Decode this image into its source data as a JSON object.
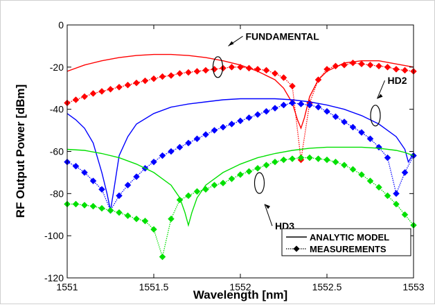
{
  "chart_data": {
    "type": "line",
    "title": "",
    "xlabel": "Wavelength [nm]",
    "ylabel": "RF Output Power [dBm]",
    "xlim": [
      1551,
      1553
    ],
    "ylim": [
      -120,
      0
    ],
    "x_ticks": [
      "1551",
      "1551.5",
      "1552",
      "1552.5",
      "1553"
    ],
    "y_ticks": [
      "0",
      "-20",
      "-40",
      "-60",
      "-80",
      "-100",
      "-120"
    ],
    "grid": false,
    "legend_position": "bottom-right",
    "legend": [
      {
        "label": "ANALYTIC MODEL",
        "style": "solid-line"
      },
      {
        "label": "MEASUREMENTS",
        "style": "dotted-line-diamond"
      }
    ],
    "annotations": [
      "FUNDAMENTAL",
      "HD2",
      "HD3"
    ],
    "colors": {
      "fundamental": "#ff0000",
      "hd2": "#0000ff",
      "hd3": "#00e000"
    },
    "series": [
      {
        "group": "fundamental",
        "kind": "model",
        "color": "#ff0000",
        "x": [
          1551,
          1551.1,
          1551.2,
          1551.3,
          1551.4,
          1551.5,
          1551.6,
          1551.7,
          1551.8,
          1551.9,
          1552,
          1552.1,
          1552.2,
          1552.25,
          1552.3,
          1552.33,
          1552.35,
          1552.37,
          1552.4,
          1552.45,
          1552.5,
          1552.6,
          1552.7,
          1552.8,
          1552.9,
          1553
        ],
        "y": [
          -22,
          -19,
          -17,
          -15.5,
          -14.5,
          -14,
          -14,
          -14.5,
          -15.5,
          -17,
          -19,
          -22,
          -26,
          -30,
          -37,
          -45,
          -49,
          -44,
          -34,
          -26,
          -22,
          -18,
          -17,
          -17,
          -18.5,
          -20
        ]
      },
      {
        "group": "fundamental",
        "kind": "measurement",
        "color": "#ff0000",
        "x": [
          1551,
          1551.05,
          1551.1,
          1551.15,
          1551.2,
          1551.25,
          1551.3,
          1551.35,
          1551.4,
          1551.45,
          1551.5,
          1551.55,
          1551.6,
          1551.65,
          1551.7,
          1551.75,
          1551.8,
          1551.85,
          1551.9,
          1551.95,
          1552,
          1552.05,
          1552.1,
          1552.15,
          1552.2,
          1552.25,
          1552.3,
          1552.35,
          1552.4,
          1552.45,
          1552.5,
          1552.55,
          1552.6,
          1552.65,
          1552.7,
          1552.75,
          1552.8,
          1552.85,
          1552.9,
          1552.95,
          1553
        ],
        "y": [
          -37,
          -35.5,
          -34,
          -32.5,
          -31.5,
          -30.5,
          -29.5,
          -28.5,
          -27.5,
          -26.5,
          -25.5,
          -24.5,
          -24,
          -23,
          -22.5,
          -22,
          -21.5,
          -21,
          -20.5,
          -20,
          -20,
          -20.5,
          -21,
          -21.5,
          -23,
          -25,
          -29,
          -64,
          -37,
          -26,
          -21,
          -19.5,
          -19,
          -18,
          -18.5,
          -19,
          -19.5,
          -20,
          -21,
          -21.5,
          -22
        ]
      },
      {
        "group": "hd2",
        "kind": "model",
        "color": "#0000ff",
        "x": [
          1551,
          1551.05,
          1551.1,
          1551.15,
          1551.2,
          1551.23,
          1551.25,
          1551.27,
          1551.3,
          1551.35,
          1551.4,
          1551.5,
          1551.6,
          1551.7,
          1551.8,
          1551.9,
          1552,
          1552.1,
          1552.2,
          1552.3,
          1552.4,
          1552.5,
          1552.6,
          1552.7,
          1552.8,
          1552.9,
          1552.95,
          1552.97,
          1553
        ],
        "y": [
          -42,
          -45,
          -49,
          -56,
          -70,
          -80,
          -88,
          -78,
          -62,
          -53,
          -47,
          -42,
          -39,
          -37.5,
          -36.5,
          -35.5,
          -35,
          -35,
          -35,
          -35.5,
          -36.5,
          -38,
          -40,
          -43,
          -47,
          -53,
          -59,
          -65,
          -61
        ]
      },
      {
        "group": "hd2",
        "kind": "measurement",
        "color": "#0000ff",
        "x": [
          1551,
          1551.05,
          1551.1,
          1551.15,
          1551.2,
          1551.25,
          1551.3,
          1551.35,
          1551.4,
          1551.45,
          1551.5,
          1551.55,
          1551.6,
          1551.65,
          1551.7,
          1551.75,
          1551.8,
          1551.85,
          1551.9,
          1551.95,
          1552,
          1552.05,
          1552.1,
          1552.15,
          1552.2,
          1552.25,
          1552.3,
          1552.35,
          1552.4,
          1552.45,
          1552.5,
          1552.55,
          1552.6,
          1552.65,
          1552.7,
          1552.75,
          1552.8,
          1552.85,
          1552.9,
          1552.95,
          1553
        ],
        "y": [
          -65,
          -67,
          -70,
          -74,
          -78,
          -88,
          -81,
          -76,
          -72,
          -68,
          -65,
          -62,
          -60,
          -58,
          -56,
          -54,
          -52,
          -50,
          -48.5,
          -47,
          -45.5,
          -44,
          -42.5,
          -41,
          -39.5,
          -38,
          -37,
          -37.5,
          -38,
          -39,
          -41,
          -43.5,
          -46,
          -48.5,
          -51,
          -54,
          -58,
          -63,
          -80,
          -70,
          -62
        ]
      },
      {
        "group": "hd3",
        "kind": "model",
        "color": "#00e000",
        "x": [
          1551,
          1551.1,
          1551.2,
          1551.3,
          1551.4,
          1551.5,
          1551.6,
          1551.65,
          1551.68,
          1551.7,
          1551.72,
          1551.75,
          1551.8,
          1551.9,
          1552,
          1552.1,
          1552.2,
          1552.3,
          1552.4,
          1552.5,
          1552.6,
          1552.7,
          1552.8,
          1552.9,
          1552.95,
          1553
        ],
        "y": [
          -59,
          -59.5,
          -61,
          -63,
          -66,
          -70,
          -76,
          -82,
          -89,
          -95,
          -89,
          -82,
          -76,
          -70,
          -66,
          -63,
          -61,
          -59.5,
          -58.5,
          -58,
          -58,
          -58,
          -58.5,
          -59.5,
          -60.5,
          -62
        ]
      },
      {
        "group": "hd3",
        "kind": "measurement",
        "color": "#00e000",
        "x": [
          1551,
          1551.05,
          1551.1,
          1551.15,
          1551.2,
          1551.25,
          1551.3,
          1551.35,
          1551.4,
          1551.45,
          1551.5,
          1551.55,
          1551.6,
          1551.65,
          1551.7,
          1551.75,
          1551.8,
          1551.85,
          1551.9,
          1551.95,
          1552,
          1552.05,
          1552.1,
          1552.15,
          1552.2,
          1552.25,
          1552.3,
          1552.35,
          1552.4,
          1552.45,
          1552.5,
          1552.55,
          1552.6,
          1552.65,
          1552.7,
          1552.75,
          1552.8,
          1552.85,
          1552.9,
          1552.95,
          1553
        ],
        "y": [
          -85,
          -85,
          -85.5,
          -86,
          -87,
          -88,
          -89,
          -90.5,
          -92,
          -93,
          -97,
          -110,
          -92,
          -83,
          -81,
          -79,
          -78,
          -76,
          -75,
          -73,
          -71,
          -69.5,
          -68,
          -66.5,
          -65,
          -64,
          -63.5,
          -63,
          -63,
          -63.5,
          -64,
          -65,
          -66.5,
          -68.5,
          -71,
          -74,
          -77,
          -81,
          -85,
          -90,
          -95
        ]
      }
    ]
  }
}
